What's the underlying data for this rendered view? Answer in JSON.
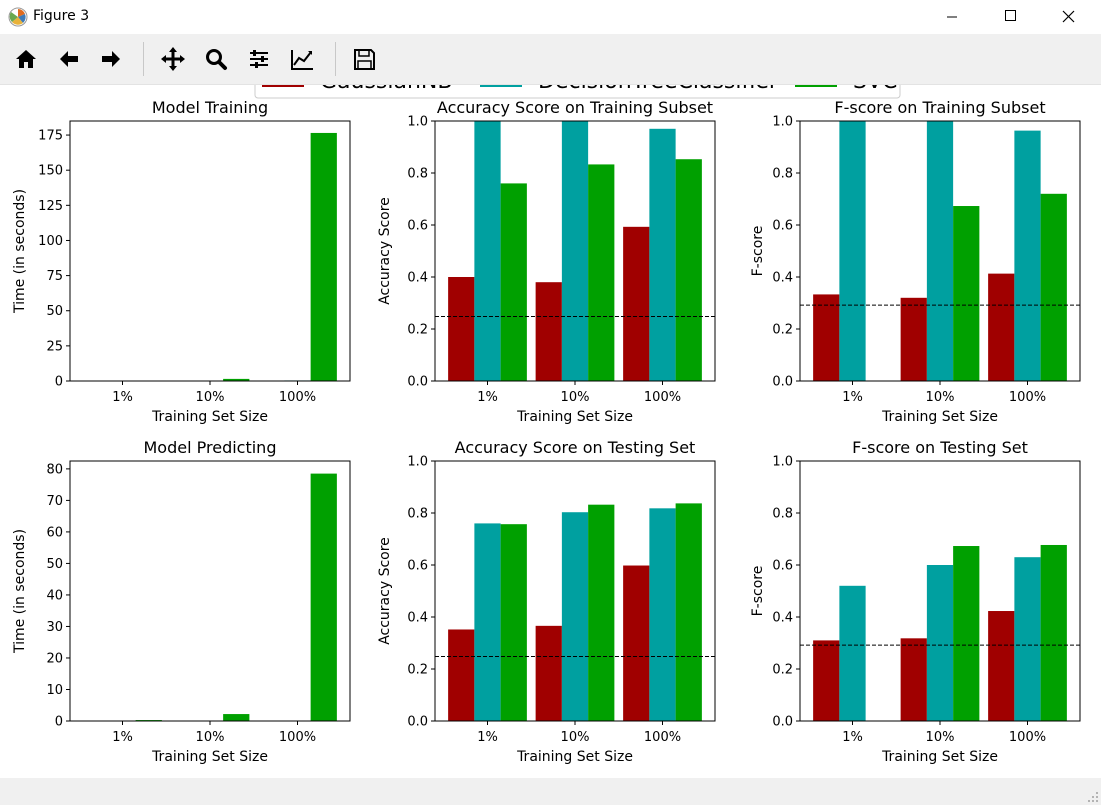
{
  "window": {
    "title": "Figure 3",
    "icon": "matplotlib-logo-icon",
    "controls": [
      "minimize-icon",
      "maximize-icon",
      "close-icon"
    ]
  },
  "toolbar": {
    "buttons": [
      "home-icon",
      "back-arrow-icon",
      "forward-arrow-icon",
      "pan-icon",
      "zoom-icon",
      "subplots-config-icon",
      "edit-axes-icon",
      "save-icon"
    ]
  },
  "colors": {
    "GaussianNB": "#a00000",
    "DecisionTreeClassifier": "#00a0a0",
    "SVC": "#00a000"
  },
  "chart_data": [
    {
      "type": "bar",
      "title": "Model Training",
      "xlabel": "Training Set Size",
      "ylabel": "Time (in seconds)",
      "categories": [
        "1%",
        "10%",
        "100%"
      ],
      "yticks": [
        0,
        25,
        50,
        75,
        100,
        125,
        150,
        175
      ],
      "ylim": [
        0,
        185
      ],
      "series": [
        {
          "name": "GaussianNB",
          "values": [
            0.01,
            0.2,
            0.3
          ]
        },
        {
          "name": "DecisionTreeClassifier",
          "values": [
            0.01,
            0.1,
            0.4
          ]
        },
        {
          "name": "SVC",
          "values": [
            0.2,
            1.5,
            176.5
          ]
        }
      ]
    },
    {
      "type": "bar",
      "title": "Accuracy Score on Training Subset",
      "xlabel": "Training Set Size",
      "ylabel": "Accuracy Score",
      "categories": [
        "1%",
        "10%",
        "100%"
      ],
      "yticks": [
        0.0,
        0.2,
        0.4,
        0.6,
        0.8,
        1.0
      ],
      "ylim": [
        0,
        1
      ],
      "baseline": 0.248,
      "series": [
        {
          "name": "GaussianNB",
          "values": [
            0.4,
            0.38,
            0.593
          ]
        },
        {
          "name": "DecisionTreeClassifier",
          "values": [
            1.0,
            1.0,
            0.97
          ]
        },
        {
          "name": "SVC",
          "values": [
            0.76,
            0.833,
            0.853
          ]
        }
      ]
    },
    {
      "type": "bar",
      "title": "F-score on Training Subset",
      "xlabel": "Training Set Size",
      "ylabel": "F-score",
      "categories": [
        "1%",
        "10%",
        "100%"
      ],
      "yticks": [
        0.0,
        0.2,
        0.4,
        0.6,
        0.8,
        1.0
      ],
      "ylim": [
        0,
        1
      ],
      "baseline": 0.292,
      "series": [
        {
          "name": "GaussianNB",
          "values": [
            0.333,
            0.32,
            0.413
          ]
        },
        {
          "name": "DecisionTreeClassifier",
          "values": [
            1.0,
            1.0,
            0.963
          ]
        },
        {
          "name": "SVC",
          "values": [
            0.0,
            0.673,
            0.72
          ]
        }
      ]
    },
    {
      "type": "bar",
      "title": "Model Predicting",
      "xlabel": "Training Set Size",
      "ylabel": "Time (in seconds)",
      "categories": [
        "1%",
        "10%",
        "100%"
      ],
      "yticks": [
        0,
        10,
        20,
        30,
        40,
        50,
        60,
        70,
        80
      ],
      "ylim": [
        0,
        82.5
      ],
      "series": [
        {
          "name": "GaussianNB",
          "values": [
            0.01,
            0.02,
            0.1
          ]
        },
        {
          "name": "DecisionTreeClassifier",
          "values": [
            0.01,
            0.01,
            0.05
          ]
        },
        {
          "name": "SVC",
          "values": [
            0.3,
            2.2,
            78.5
          ]
        }
      ]
    },
    {
      "type": "bar",
      "title": "Accuracy Score on Testing Set",
      "xlabel": "Training Set Size",
      "ylabel": "Accuracy Score",
      "categories": [
        "1%",
        "10%",
        "100%"
      ],
      "yticks": [
        0.0,
        0.2,
        0.4,
        0.6,
        0.8,
        1.0
      ],
      "ylim": [
        0,
        1
      ],
      "baseline": 0.248,
      "series": [
        {
          "name": "GaussianNB",
          "values": [
            0.352,
            0.366,
            0.598
          ]
        },
        {
          "name": "DecisionTreeClassifier",
          "values": [
            0.76,
            0.803,
            0.818
          ]
        },
        {
          "name": "SVC",
          "values": [
            0.757,
            0.832,
            0.837
          ]
        }
      ]
    },
    {
      "type": "bar",
      "title": "F-score on Testing Set",
      "xlabel": "Training Set Size",
      "ylabel": "F-score",
      "categories": [
        "1%",
        "10%",
        "100%"
      ],
      "yticks": [
        0.0,
        0.2,
        0.4,
        0.6,
        0.8,
        1.0
      ],
      "ylim": [
        0,
        1
      ],
      "baseline": 0.292,
      "series": [
        {
          "name": "GaussianNB",
          "values": [
            0.31,
            0.318,
            0.423
          ]
        },
        {
          "name": "DecisionTreeClassifier",
          "values": [
            0.52,
            0.6,
            0.63
          ]
        },
        {
          "name": "SVC",
          "values": [
            0.0,
            0.673,
            0.677
          ]
        }
      ]
    }
  ],
  "legend": {
    "placement": "top-center",
    "entries": [
      "GaussianNB",
      "DecisionTreeClassifier",
      "SVC"
    ]
  }
}
